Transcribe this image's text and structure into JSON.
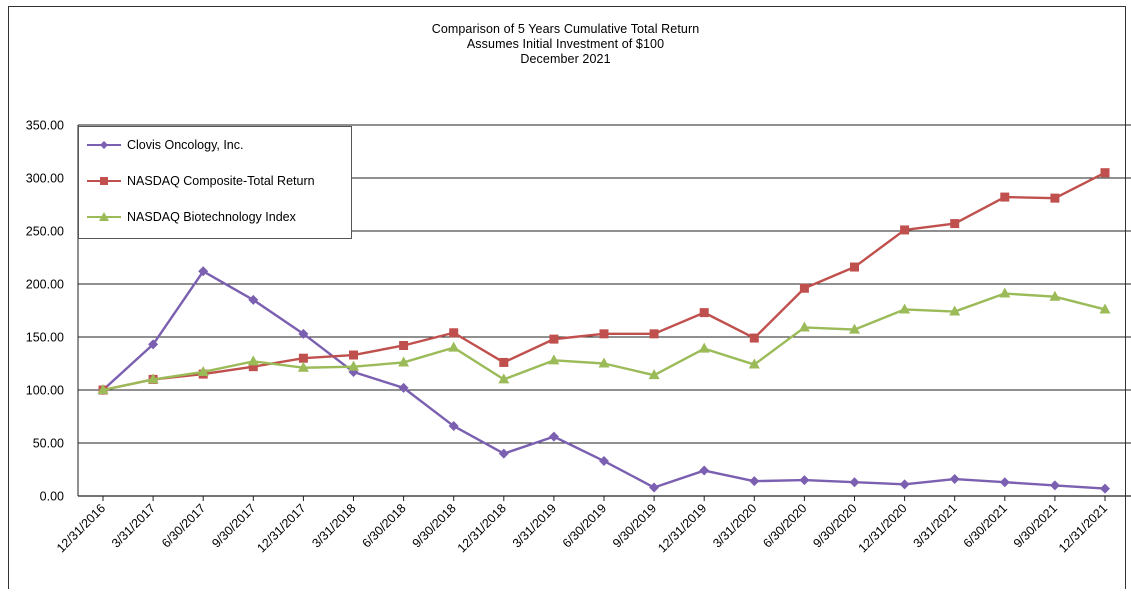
{
  "chart_data": {
    "type": "line",
    "title": "Comparison  of 5 Years Cumulative  Total  Return",
    "subtitle": "Assumes Initial Investment  of $100",
    "subtitle2": "December  2021",
    "xlabel": "",
    "ylabel": "",
    "ylim": [
      0,
      350
    ],
    "yticks": [
      "0.00",
      "50.00",
      "100.00",
      "150.00",
      "200.00",
      "250.00",
      "300.00",
      "350.00"
    ],
    "grid": true,
    "legend_position": "top-left",
    "categories": [
      "12/31/2016",
      "3/31/2017",
      "6/30/2017",
      "9/30/2017",
      "12/31/2017",
      "3/31/2018",
      "6/30/2018",
      "9/30/2018",
      "12/31/2018",
      "3/31/2019",
      "6/30/2019",
      "9/30/2019",
      "12/31/2019",
      "3/31/2020",
      "6/30/2020",
      "9/30/2020",
      "12/31/2020",
      "3/31/2021",
      "6/30/2021",
      "9/30/2021",
      "12/31/2021"
    ],
    "series": [
      {
        "name": "Clovis Oncology, Inc.",
        "color": "#7b5fb0",
        "marker": "diamond",
        "values": [
          100,
          143,
          212,
          185,
          153,
          117,
          102,
          66,
          40,
          56,
          33,
          8,
          24,
          14,
          15,
          13,
          11,
          16,
          13,
          10,
          7
        ]
      },
      {
        "name": "NASDAQ Composite-Total Return",
        "color": "#c0504d",
        "marker": "square",
        "values": [
          100,
          110,
          115,
          122,
          130,
          133,
          142,
          154,
          126,
          148,
          153,
          153,
          173,
          149,
          196,
          216,
          251,
          257,
          282,
          281,
          305
        ]
      },
      {
        "name": "NASDAQ Biotechnology Index",
        "color": "#9bbb59",
        "marker": "triangle",
        "values": [
          100,
          110,
          117,
          127,
          121,
          122,
          126,
          140,
          110,
          128,
          125,
          114,
          139,
          124,
          159,
          157,
          176,
          174,
          191,
          188,
          176
        ]
      }
    ]
  }
}
